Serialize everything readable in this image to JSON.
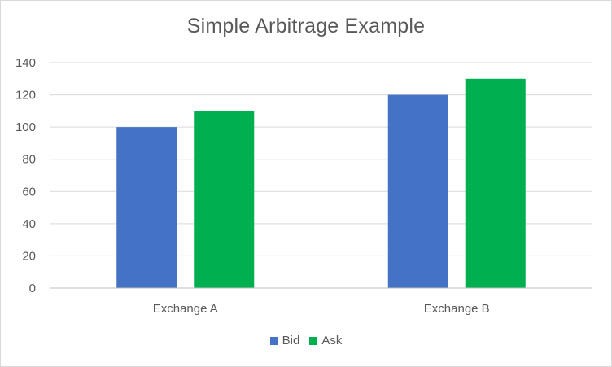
{
  "chart_data": {
    "type": "bar",
    "title": "Simple Arbitrage Example",
    "xlabel": "",
    "ylabel": "",
    "categories": [
      "Exchange A",
      "Exchange B"
    ],
    "series": [
      {
        "name": "Bid",
        "values": [
          100,
          120
        ],
        "color": "#4472c4"
      },
      {
        "name": "Ask",
        "values": [
          110,
          130
        ],
        "color": "#00b050"
      }
    ],
    "ylim": [
      0,
      140
    ],
    "yticks": [
      0,
      20,
      40,
      60,
      80,
      100,
      120,
      140
    ],
    "grid": true,
    "legend_position": "bottom"
  }
}
